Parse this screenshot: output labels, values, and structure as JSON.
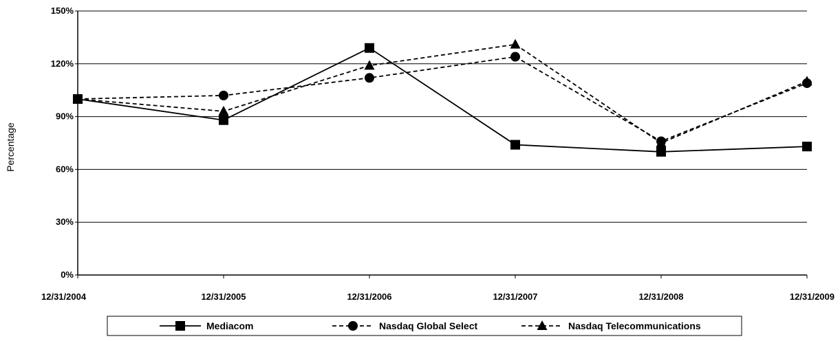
{
  "chart_data": {
    "type": "line",
    "title": "",
    "xlabel": "",
    "ylabel": "Percentage",
    "categories": [
      "12/31/2004",
      "12/31/2005",
      "12/31/2006",
      "12/31/2007",
      "12/31/2008",
      "12/31/2009"
    ],
    "yticks": [
      "0%",
      "30%",
      "60%",
      "90%",
      "120%",
      "150%"
    ],
    "ylim": [
      0,
      150
    ],
    "grid": true,
    "legend_position": "bottom",
    "series": [
      {
        "name": "Mediacom",
        "values": [
          100,
          88,
          129,
          74,
          70,
          73
        ],
        "marker": "square",
        "line": "solid",
        "color": "#000000"
      },
      {
        "name": "Nasdaq Global Select",
        "values": [
          100,
          102,
          112,
          124,
          76,
          109
        ],
        "marker": "circle",
        "line": "dashed",
        "color": "#000000"
      },
      {
        "name": "Nasdaq Telecommunications",
        "values": [
          100,
          93,
          119,
          131,
          75,
          110
        ],
        "marker": "triangle",
        "line": "dashed",
        "color": "#000000"
      }
    ]
  }
}
